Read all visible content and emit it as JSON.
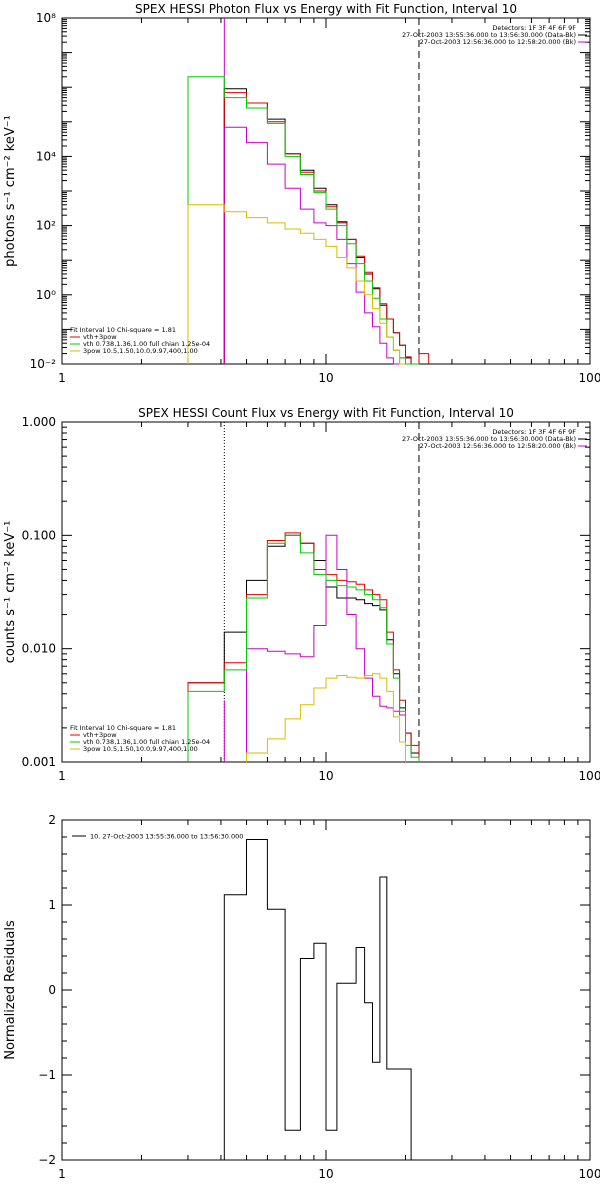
{
  "chart_data": [
    {
      "type": "line",
      "title": "SPEX HESSI Photon Flux vs Energy with Fit Function, Interval 10",
      "xlabel": "",
      "ylabel": "photons s⁻¹ cm⁻² keV⁻¹",
      "xscale": "log",
      "yscale": "log",
      "xlim": [
        1,
        100
      ],
      "ylim": [
        0.01,
        100000000
      ],
      "x_ticks": [
        1,
        10,
        100
      ],
      "x_tick_labels": [
        "1",
        "10",
        "100"
      ],
      "y_ticks": [
        0.01,
        1,
        100,
        10000,
        100000000
      ],
      "y_tick_labels": [
        "10⁻²",
        "10⁰",
        "10²",
        "10⁴",
        "10⁸"
      ],
      "grid": false,
      "legend_top": [
        "Detectors: 1F 3F 4F 6F 9F",
        "27-Oct-2003 13:55:36.000 to 13:56:30.000 (Data-Bk)",
        "27-Oct-2003 12:56:36.000 to 12:58:20.000 (Bk)"
      ],
      "legend_bottom_title": "Fit Interval 10    Chi-square = 1.81",
      "legend_bottom": [
        "vth+3pow",
        "vth 0.738,1.36,1.00  full chian 1.25e-04",
        "3pow 10.5,1.50,10.0,9.97,400,1.00"
      ],
      "vlines": [
        {
          "x": 4.12,
          "style": "solid",
          "color": "#cc00cc"
        },
        {
          "x": 22.5,
          "style": "dashed",
          "color": "#000000"
        }
      ],
      "bin_edges": [
        3.0,
        4.12,
        5.0,
        6.0,
        7.0,
        8.0,
        9.0,
        10.0,
        11.0,
        12.0,
        13.0,
        14.0,
        15.0,
        16.0,
        17.0,
        18.0,
        19.0,
        20.0,
        21.0,
        22.5,
        24.5
      ],
      "series": [
        {
          "name": "Data-Bk",
          "color": "#000000",
          "values": [
            null,
            900000,
            350000,
            120000,
            12000,
            4000,
            1200,
            400,
            130,
            40,
            12,
            4,
            1.5,
            0.5,
            0.2,
            0.08,
            0.035,
            0.015,
            null,
            null
          ]
        },
        {
          "name": "vth+3pow",
          "color": "#dd0000",
          "values": [
            null,
            700000,
            350000,
            100000,
            12000,
            3500,
            1000,
            350,
            120,
            40,
            13,
            4.5,
            1.6,
            0.55,
            0.2,
            0.08,
            0.035,
            0.016,
            0.008,
            0.02
          ]
        },
        {
          "name": "Bk",
          "color": "#cc00cc",
          "values": [
            null,
            70000,
            25000,
            6000,
            1200,
            300,
            120,
            100,
            40,
            8,
            1.2,
            0.3,
            0.12,
            0.04,
            0.015,
            0.01,
            0.015,
            null,
            null,
            null
          ]
        },
        {
          "name": "vth",
          "color": "#00cc00",
          "values": [
            2000000,
            500000,
            250000,
            90000,
            10000,
            3000,
            900,
            300,
            100,
            30,
            8,
            2.5,
            0.8,
            0.2,
            0.06,
            0.025,
            0.015,
            0.01,
            0.003,
            null
          ]
        },
        {
          "name": "3pow",
          "color": "#ddbb00",
          "values": [
            400,
            250,
            170,
            120,
            80,
            60,
            40,
            25,
            12,
            6,
            2.5,
            1,
            0.4,
            0.15,
            0.06,
            0.025,
            0.01,
            null,
            null,
            null
          ]
        }
      ]
    },
    {
      "type": "line",
      "title": "SPEX HESSI Count Flux vs Energy with Fit Function, Interval 10",
      "xlabel": "",
      "ylabel": "counts s⁻¹ cm⁻² keV⁻¹",
      "xscale": "log",
      "yscale": "log",
      "xlim": [
        1,
        100
      ],
      "ylim": [
        0.001,
        1.0
      ],
      "x_ticks": [
        1,
        10,
        100
      ],
      "x_tick_labels": [
        "1",
        "10",
        "100"
      ],
      "y_ticks": [
        0.001,
        0.01,
        0.1,
        1.0
      ],
      "y_tick_labels": [
        "0.001",
        "0.010",
        "0.100",
        "1.000"
      ],
      "grid": false,
      "legend_top": [
        "Detectors: 1F 3F 4F 6F 9F",
        "27-Oct-2003 13:55:36.000 to 13:56:30.000 (Data-Bk)",
        "27-Oct-2003 12:56:36.000 to 12:58:20.000 (Bk)"
      ],
      "legend_bottom_title": "Fit Interval 10    Chi-square = 1.81",
      "legend_bottom": [
        "vth+3pow",
        "vth 0.738,1.36,1.00  full chian 1.25e-04",
        "3pow 10.5,1.50,10.0,9.97,400,1.00"
      ],
      "vlines": [
        {
          "x": 4.12,
          "style": "dotted",
          "color": "#000000"
        },
        {
          "x": 4.12,
          "style": "solid",
          "color": "#cc00cc",
          "from": 0.001,
          "to": 0.0035
        },
        {
          "x": 22.5,
          "style": "dashed",
          "color": "#000000"
        }
      ],
      "bin_edges": [
        3.0,
        4.12,
        5.0,
        6.0,
        7.0,
        8.0,
        9.0,
        10.0,
        11.0,
        12.0,
        13.0,
        14.0,
        15.0,
        16.0,
        17.0,
        18.0,
        19.0,
        20.0,
        21.0,
        22.5,
        24.5
      ],
      "series": [
        {
          "name": "Data-Bk",
          "color": "#000000",
          "values": [
            0.005,
            0.014,
            0.04,
            0.08,
            0.1,
            0.085,
            0.06,
            0.035,
            0.028,
            0.028,
            0.027,
            0.025,
            0.024,
            0.022,
            0.012,
            0.006,
            0.003,
            0.0018,
            0.0012,
            null
          ]
        },
        {
          "name": "vth+3pow",
          "color": "#dd0000",
          "values": [
            0.005,
            0.0075,
            0.03,
            0.09,
            0.105,
            0.085,
            0.05,
            0.045,
            0.04,
            0.039,
            0.037,
            0.033,
            0.03,
            0.027,
            0.014,
            0.0065,
            0.0035,
            0.0018,
            0.0014,
            null
          ]
        },
        {
          "name": "Bk",
          "color": "#cc00cc",
          "values": [
            null,
            null,
            0.01,
            0.0095,
            0.009,
            0.0085,
            0.016,
            0.1,
            0.05,
            0.02,
            0.01,
            0.0055,
            0.0038,
            0.0031,
            0.003,
            0.0028,
            0.0026,
            null,
            null,
            null
          ]
        },
        {
          "name": "vth",
          "color": "#00cc00",
          "values": [
            0.0042,
            0.0065,
            0.028,
            0.085,
            0.1,
            0.07,
            0.045,
            0.04,
            0.036,
            0.035,
            0.033,
            0.03,
            0.027,
            0.023,
            0.011,
            0.0055,
            0.0028,
            0.0014,
            0.0011,
            null
          ]
        },
        {
          "name": "3pow",
          "color": "#ddbb00",
          "values": [
            null,
            null,
            0.0012,
            0.0016,
            0.0024,
            0.0032,
            0.0045,
            0.0055,
            0.0058,
            0.0056,
            0.0055,
            0.0058,
            0.006,
            0.0055,
            0.0042,
            0.0025,
            0.0015,
            null,
            null,
            null
          ]
        }
      ]
    },
    {
      "type": "line",
      "title": "",
      "xlabel": "",
      "ylabel": "Normalized Residuals",
      "xscale": "log",
      "yscale": "linear",
      "xlim": [
        1,
        100
      ],
      "ylim": [
        -2,
        2
      ],
      "x_ticks": [
        1,
        10,
        100
      ],
      "x_tick_labels": [
        "1",
        "10",
        "100"
      ],
      "y_ticks": [
        -2,
        -1,
        0,
        1,
        2
      ],
      "y_tick_labels": [
        "−2",
        "−1",
        "0",
        "1",
        "2"
      ],
      "grid": false,
      "legend_top": [
        "10. 27-Oct-2003 13:55:36.000 to 13:56:30.000"
      ],
      "bin_edges": [
        4.12,
        5.0,
        6.0,
        7.0,
        8.0,
        9.0,
        10.0,
        11.0,
        12.0,
        13.0,
        14.0,
        15.0,
        16.0,
        17.0,
        18.0,
        19.0,
        20.0,
        21.0,
        22.5
      ],
      "series": [
        {
          "name": "10. 27-Oct-2003 13:55:36.000 to 13:56:30.000",
          "color": "#000000",
          "values": [
            1.12,
            1.77,
            0.95,
            -1.65,
            0.37,
            0.55,
            -1.65,
            0.08,
            0.08,
            0.5,
            -0.15,
            -0.85,
            1.33,
            -0.93,
            -0.93,
            -0.93,
            -0.93,
            -2.1
          ]
        }
      ]
    }
  ]
}
